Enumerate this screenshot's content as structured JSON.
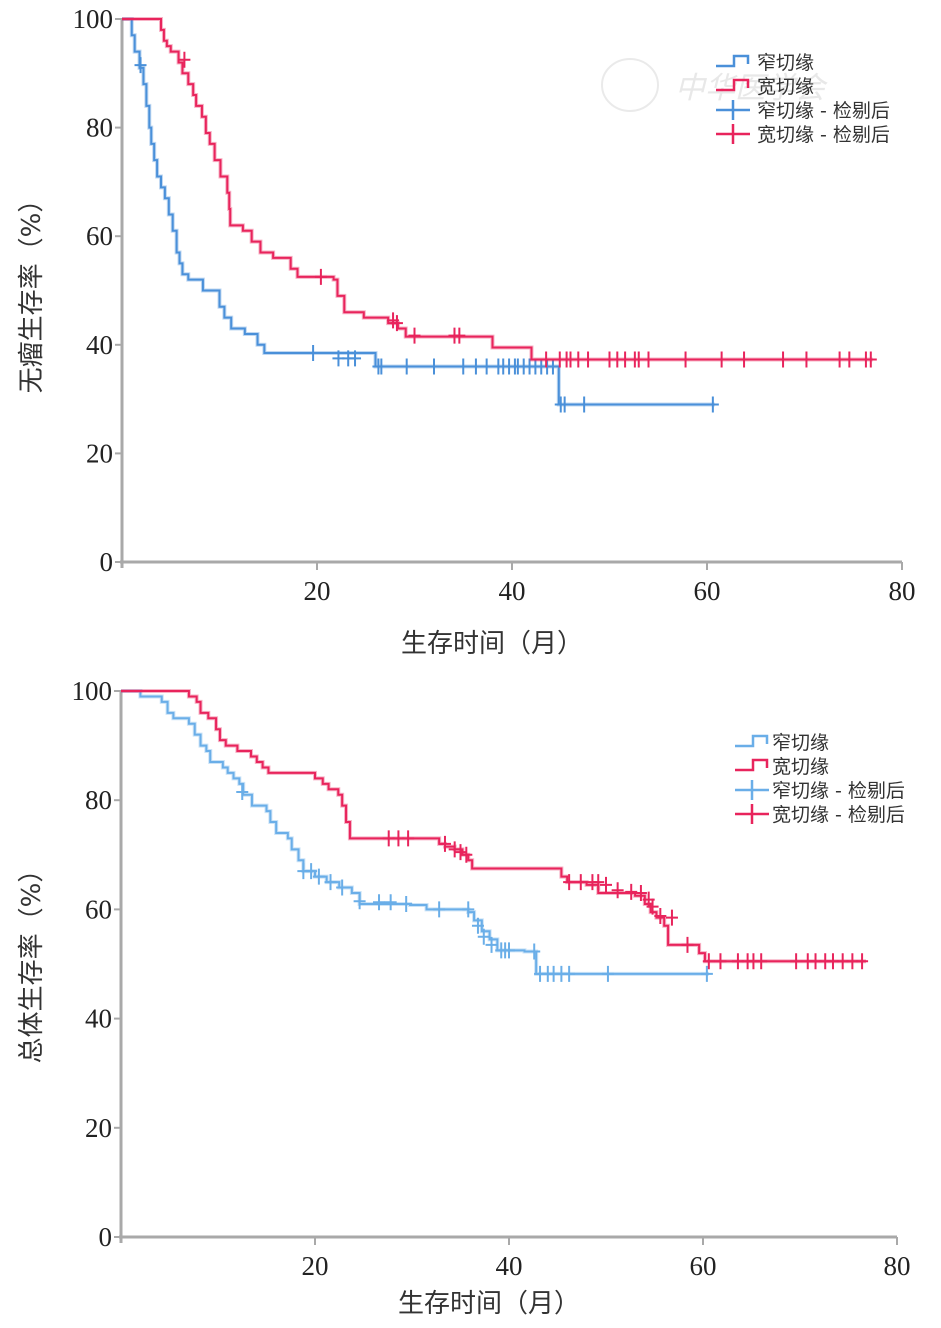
{
  "figure": {
    "watermark_text": "中华医学会"
  },
  "chart_data": [
    {
      "type": "line",
      "subtype": "kaplan-meier",
      "title": "",
      "xlabel": "生存时间（月）",
      "ylabel": "无瘤生存率（%）",
      "xlim": [
        0,
        80
      ],
      "ylim": [
        0,
        100
      ],
      "xticks": [
        20,
        40,
        60,
        80
      ],
      "yticks": [
        0,
        20,
        40,
        60,
        80,
        100
      ],
      "grid": false,
      "legend_position": "top-right",
      "legend": [
        "窄切缘",
        "宽切缘",
        "窄切缘 - 检剔后",
        "宽切缘 - 检剔后"
      ],
      "series": [
        {
          "name": "窄切缘",
          "color": "#4a90d9",
          "steps": [
            [
              0,
              100
            ],
            [
              0.8,
              100
            ],
            [
              1.0,
              97
            ],
            [
              1.3,
              94
            ],
            [
              1.8,
              91
            ],
            [
              2.2,
              88
            ],
            [
              2.5,
              84
            ],
            [
              2.8,
              80
            ],
            [
              3.0,
              77
            ],
            [
              3.3,
              74
            ],
            [
              3.6,
              71
            ],
            [
              4.0,
              69
            ],
            [
              4.4,
              67
            ],
            [
              4.8,
              64
            ],
            [
              5.2,
              61
            ],
            [
              5.6,
              57
            ],
            [
              5.9,
              55
            ],
            [
              6.2,
              53
            ],
            [
              6.8,
              52
            ],
            [
              8.3,
              50
            ],
            [
              10.0,
              47
            ],
            [
              10.5,
              45
            ],
            [
              11.2,
              43
            ],
            [
              12.6,
              42
            ],
            [
              13.9,
              40
            ],
            [
              14.6,
              38.5
            ],
            [
              26.0,
              36
            ],
            [
              44.8,
              29
            ],
            [
              60.8,
              29
            ]
          ],
          "censored": [
            [
              1.9,
              91.5
            ],
            [
              19.6,
              38.5
            ],
            [
              22.2,
              37.5
            ],
            [
              23.2,
              37.5
            ],
            [
              23.9,
              37.5
            ],
            [
              26.3,
              36
            ],
            [
              26.6,
              36
            ],
            [
              29.2,
              36
            ],
            [
              32.0,
              36
            ],
            [
              35.0,
              36
            ],
            [
              36.3,
              36
            ],
            [
              37.4,
              36
            ],
            [
              38.6,
              36
            ],
            [
              39.1,
              36
            ],
            [
              39.7,
              36
            ],
            [
              40.3,
              36
            ],
            [
              40.6,
              36
            ],
            [
              41.2,
              36
            ],
            [
              41.8,
              36
            ],
            [
              42.4,
              36
            ],
            [
              43.0,
              36
            ],
            [
              43.6,
              36
            ],
            [
              44.2,
              36
            ],
            [
              45.0,
              29
            ],
            [
              45.4,
              29
            ],
            [
              47.4,
              29
            ],
            [
              60.6,
              29
            ]
          ]
        },
        {
          "name": "宽切缘",
          "color": "#e8245c",
          "steps": [
            [
              0,
              100
            ],
            [
              3.6,
              100
            ],
            [
              4.0,
              98
            ],
            [
              4.3,
              96
            ],
            [
              4.6,
              95
            ],
            [
              5.0,
              94
            ],
            [
              5.8,
              92
            ],
            [
              6.2,
              90
            ],
            [
              6.8,
              88
            ],
            [
              7.3,
              86
            ],
            [
              7.6,
              84
            ],
            [
              8.2,
              82
            ],
            [
              8.6,
              79
            ],
            [
              9.0,
              77
            ],
            [
              9.5,
              74
            ],
            [
              10.1,
              71
            ],
            [
              10.8,
              68
            ],
            [
              11.0,
              65
            ],
            [
              11.1,
              62
            ],
            [
              12.4,
              61
            ],
            [
              13.3,
              59
            ],
            [
              14.2,
              57
            ],
            [
              15.5,
              56
            ],
            [
              17.3,
              54
            ],
            [
              18.0,
              52.5
            ],
            [
              21.7,
              52
            ],
            [
              22.1,
              49
            ],
            [
              22.8,
              46
            ],
            [
              24.8,
              45
            ],
            [
              27.3,
              44
            ],
            [
              28.3,
              43
            ],
            [
              29.1,
              41.5
            ],
            [
              38.0,
              39.5
            ],
            [
              42.0,
              37.3
            ],
            [
              77,
              37.3
            ]
          ],
          "censored": [
            [
              6.4,
              92.5
            ],
            [
              20.4,
              52.5
            ],
            [
              27.8,
              44.5
            ],
            [
              28.2,
              44
            ],
            [
              30.0,
              41.7
            ],
            [
              34.1,
              41.7
            ],
            [
              34.6,
              41.7
            ],
            [
              43.5,
              37.3
            ],
            [
              44.9,
              37.3
            ],
            [
              45.6,
              37.3
            ],
            [
              46.0,
              37.3
            ],
            [
              46.8,
              37.3
            ],
            [
              47.8,
              37.3
            ],
            [
              50.0,
              37.3
            ],
            [
              50.8,
              37.3
            ],
            [
              51.6,
              37.3
            ],
            [
              52.6,
              37.3
            ],
            [
              53.0,
              37.3
            ],
            [
              54.0,
              37.3
            ],
            [
              57.8,
              37.3
            ],
            [
              61.5,
              37.3
            ],
            [
              63.8,
              37.3
            ],
            [
              67.8,
              37.3
            ],
            [
              70.2,
              37.3
            ],
            [
              73.6,
              37.3
            ],
            [
              74.6,
              37.3
            ],
            [
              76.3,
              37.3
            ],
            [
              76.8,
              37.3
            ]
          ]
        }
      ]
    },
    {
      "type": "line",
      "subtype": "kaplan-meier",
      "title": "",
      "xlabel": "生存时间（月）",
      "ylabel": "总体生存率（%）",
      "xlim": [
        0,
        80
      ],
      "ylim": [
        0,
        100
      ],
      "xticks": [
        20,
        40,
        60,
        80
      ],
      "yticks": [
        0,
        20,
        40,
        60,
        80,
        100
      ],
      "grid": false,
      "legend_position": "top-right",
      "legend": [
        "窄切缘",
        "宽切缘",
        "窄切缘 - 检剔后",
        "宽切缘 - 检剔后"
      ],
      "series": [
        {
          "name": "窄切缘",
          "color": "#6aaee8",
          "steps": [
            [
              0,
              100
            ],
            [
              2.0,
              99
            ],
            [
              4.2,
              98
            ],
            [
              4.8,
              96
            ],
            [
              5.4,
              95
            ],
            [
              7.0,
              94
            ],
            [
              7.6,
              92
            ],
            [
              8.2,
              90
            ],
            [
              8.8,
              89
            ],
            [
              9.2,
              87
            ],
            [
              10.5,
              86
            ],
            [
              11.0,
              85
            ],
            [
              11.6,
              84
            ],
            [
              12.2,
              83
            ],
            [
              12.6,
              81
            ],
            [
              13.5,
              79
            ],
            [
              15.0,
              78
            ],
            [
              15.4,
              76
            ],
            [
              16.0,
              74
            ],
            [
              17.2,
              73
            ],
            [
              17.6,
              71
            ],
            [
              18.3,
              69
            ],
            [
              18.8,
              67
            ],
            [
              20.0,
              66
            ],
            [
              21.2,
              65
            ],
            [
              22.5,
              64
            ],
            [
              23.8,
              63
            ],
            [
              24.6,
              61
            ],
            [
              29.8,
              60.8
            ],
            [
              31.5,
              60
            ],
            [
              35.8,
              59.5
            ],
            [
              36.4,
              58
            ],
            [
              37.2,
              56
            ],
            [
              38.0,
              54.5
            ],
            [
              38.8,
              52.5
            ],
            [
              41.6,
              52.3
            ],
            [
              42.8,
              48.2
            ],
            [
              60.6,
              48.2
            ]
          ],
          "censored": [
            [
              12.5,
              81.5
            ],
            [
              18.8,
              67
            ],
            [
              19.6,
              67
            ],
            [
              20.4,
              66
            ],
            [
              21.6,
              65
            ],
            [
              22.8,
              64
            ],
            [
              24.6,
              61.5
            ],
            [
              26.6,
              61.3
            ],
            [
              27.8,
              61.3
            ],
            [
              29.4,
              61
            ],
            [
              32.8,
              60
            ],
            [
              35.8,
              60
            ],
            [
              36.8,
              57
            ],
            [
              37.4,
              55
            ],
            [
              38.2,
              53.5
            ],
            [
              39.2,
              52.5
            ],
            [
              39.6,
              52.5
            ],
            [
              40.0,
              52.5
            ],
            [
              42.6,
              52.3
            ],
            [
              43.2,
              48.2
            ],
            [
              44.0,
              48.2
            ],
            [
              44.6,
              48.2
            ],
            [
              45.4,
              48.2
            ],
            [
              46.2,
              48.2
            ],
            [
              50.2,
              48.2
            ],
            [
              60.4,
              48.2
            ]
          ]
        },
        {
          "name": "宽切缘",
          "color": "#e8245c",
          "steps": [
            [
              0,
              100
            ],
            [
              6.2,
              100
            ],
            [
              7.0,
              99
            ],
            [
              7.8,
              98
            ],
            [
              8.2,
              96
            ],
            [
              9.0,
              95
            ],
            [
              9.8,
              93
            ],
            [
              10.2,
              91
            ],
            [
              10.8,
              90
            ],
            [
              12.0,
              89
            ],
            [
              13.4,
              88
            ],
            [
              14.0,
              87
            ],
            [
              14.6,
              86
            ],
            [
              15.2,
              85
            ],
            [
              19.5,
              85
            ],
            [
              20.0,
              84
            ],
            [
              20.8,
              83
            ],
            [
              21.4,
              82
            ],
            [
              22.4,
              81
            ],
            [
              22.8,
              79
            ],
            [
              23.2,
              76
            ],
            [
              23.6,
              73
            ],
            [
              32.4,
              73
            ],
            [
              32.8,
              72
            ],
            [
              33.4,
              71.5
            ],
            [
              34.4,
              71
            ],
            [
              35.2,
              70
            ],
            [
              35.8,
              69
            ],
            [
              36.2,
              67.5
            ],
            [
              45.0,
              67.5
            ],
            [
              45.4,
              66
            ],
            [
              46.0,
              65
            ],
            [
              48.0,
              64.5
            ],
            [
              49.2,
              63
            ],
            [
              52.4,
              63
            ],
            [
              53.0,
              62.5
            ],
            [
              54.0,
              61
            ],
            [
              54.6,
              59.5
            ],
            [
              55.2,
              58.5
            ],
            [
              56.0,
              57
            ],
            [
              56.4,
              53.5
            ],
            [
              58.8,
              53.5
            ],
            [
              59.6,
              52
            ],
            [
              60.2,
              50.5
            ],
            [
              76.8,
              50.5
            ]
          ],
          "censored": [
            [
              27.6,
              73
            ],
            [
              28.6,
              73
            ],
            [
              29.6,
              73
            ],
            [
              33.4,
              72
            ],
            [
              34.4,
              71
            ],
            [
              35.0,
              70.5
            ],
            [
              35.6,
              70
            ],
            [
              46.2,
              65
            ],
            [
              47.4,
              65
            ],
            [
              48.6,
              65
            ],
            [
              49.2,
              65
            ],
            [
              50.0,
              64.5
            ],
            [
              51.2,
              63.5
            ],
            [
              52.6,
              63.2
            ],
            [
              53.6,
              63
            ],
            [
              54.4,
              61.8
            ],
            [
              54.8,
              60.5
            ],
            [
              55.6,
              58.8
            ],
            [
              56.8,
              58.5
            ],
            [
              58.4,
              53.5
            ],
            [
              60.6,
              50.5
            ],
            [
              61.8,
              50.5
            ],
            [
              63.6,
              50.5
            ],
            [
              64.6,
              50.5
            ],
            [
              65.2,
              50.5
            ],
            [
              66.0,
              50.5
            ],
            [
              69.6,
              50.5
            ],
            [
              70.8,
              50.5
            ],
            [
              71.6,
              50.5
            ],
            [
              72.6,
              50.5
            ],
            [
              73.4,
              50.5
            ],
            [
              74.4,
              50.5
            ],
            [
              75.4,
              50.5
            ],
            [
              76.4,
              50.5
            ]
          ]
        }
      ]
    }
  ]
}
